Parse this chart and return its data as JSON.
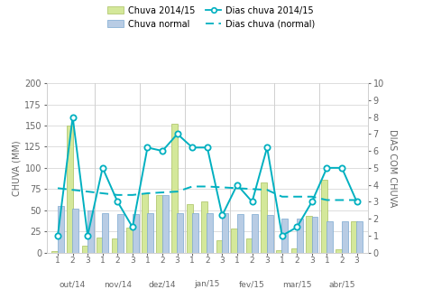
{
  "months": [
    "out/14",
    "nov/14",
    "dez/14",
    "jan/15",
    "fev/15",
    "mar/15",
    "abr/15"
  ],
  "x_tick_labels": [
    "1",
    "2",
    "3",
    "1",
    "2",
    "3",
    "1",
    "2",
    "3",
    "1",
    "2",
    "3",
    "1",
    "2",
    "3",
    "1",
    "2",
    "3",
    "1",
    "2",
    "3"
  ],
  "bar_chuva_2014": [
    2,
    150,
    8,
    18,
    17,
    29,
    70,
    68,
    152,
    57,
    60,
    15,
    28,
    17,
    83,
    3,
    5,
    43,
    86,
    4,
    37
  ],
  "bar_chuva_normal": [
    55,
    52,
    50,
    47,
    45,
    45,
    47,
    68,
    47,
    47,
    47,
    47,
    45,
    45,
    44,
    40,
    40,
    42,
    37,
    37,
    37
  ],
  "line_dias_2014": [
    1.0,
    8.0,
    1.0,
    5.0,
    3.0,
    1.5,
    6.2,
    6.0,
    7.0,
    6.2,
    6.2,
    2.2,
    4.0,
    3.0,
    6.2,
    1.0,
    1.5,
    3.0,
    5.0,
    5.0,
    3.0
  ],
  "line_dias_normal": [
    3.8,
    3.7,
    3.6,
    3.5,
    3.4,
    3.4,
    3.5,
    3.55,
    3.6,
    3.9,
    3.9,
    3.85,
    3.8,
    3.75,
    3.7,
    3.3,
    3.3,
    3.3,
    3.1,
    3.1,
    3.1
  ],
  "bar_color_2014": "#d4e89a",
  "bar_color_normal": "#b8cce4",
  "bar_edgecolor_2014": "#a8c060",
  "bar_edgecolor_normal": "#7aa8d0",
  "line_color_dias": "#00b0c0",
  "line_color_normal": "#00b0c0",
  "ylabel_left": "CHUVA (MM)",
  "ylabel_right": "DIAS COM CHUVA",
  "ylim_left": [
    0,
    200
  ],
  "ylim_right": [
    0,
    10
  ],
  "yticks_left": [
    0,
    25,
    50,
    75,
    100,
    125,
    150,
    175,
    200
  ],
  "yticks_right": [
    0,
    1,
    2,
    3,
    4,
    5,
    6,
    7,
    8,
    9,
    10
  ],
  "background_color": "#ffffff",
  "grid_color": "#d0d0d0",
  "legend_labels": [
    "Chuva 2014/15",
    "Chuva normal",
    "Dias chuva 2014/15",
    "Dias chuva (normal)"
  ]
}
